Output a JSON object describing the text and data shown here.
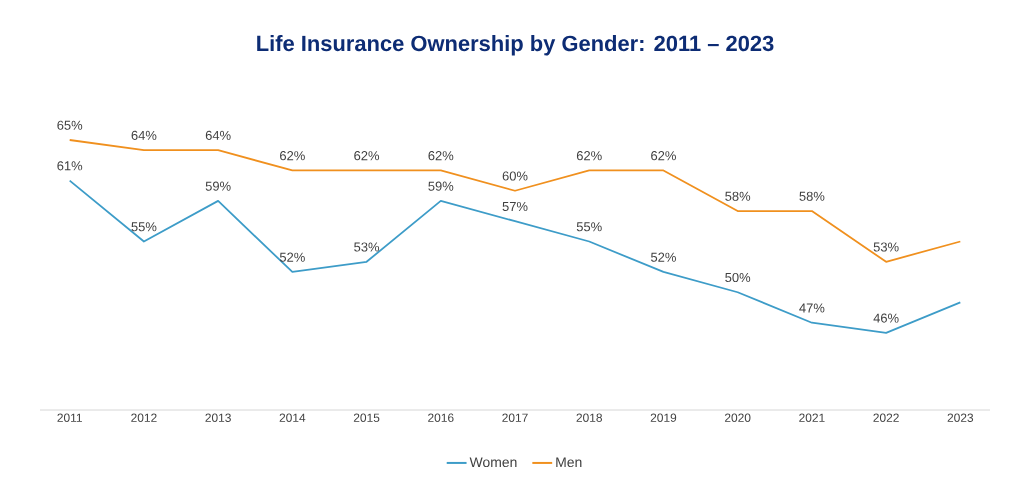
{
  "chart_data": {
    "type": "line",
    "title": "Life Insurance Ownership by Gender: 2011 – 2023",
    "categories": [
      "2011",
      "2012",
      "2013",
      "2014",
      "2015",
      "2016",
      "2017",
      "2018",
      "2019",
      "2020",
      "2021",
      "2022",
      "2023"
    ],
    "series": [
      {
        "name": "Women",
        "color": "#3d9cc8",
        "values": [
          61,
          55,
          59,
          52,
          53,
          59,
          57,
          55,
          52,
          50,
          47,
          46,
          49
        ],
        "value_labels": [
          "61%",
          "55%",
          "59%",
          "52%",
          "53%",
          "59%",
          "57%",
          "55%",
          "52%",
          "50%",
          "47%",
          "46%",
          null
        ]
      },
      {
        "name": "Men",
        "color": "#f0901e",
        "values": [
          65,
          64,
          64,
          62,
          62,
          62,
          60,
          62,
          62,
          58,
          58,
          53,
          55
        ],
        "value_labels": [
          "65%",
          "64%",
          "64%",
          "62%",
          "62%",
          "62%",
          "60%",
          "62%",
          "62%",
          "58%",
          "58%",
          "53%",
          null
        ]
      }
    ],
    "legend": "bottom",
    "marker": "none",
    "line_style": "solid",
    "tick_labels": "x"
  }
}
